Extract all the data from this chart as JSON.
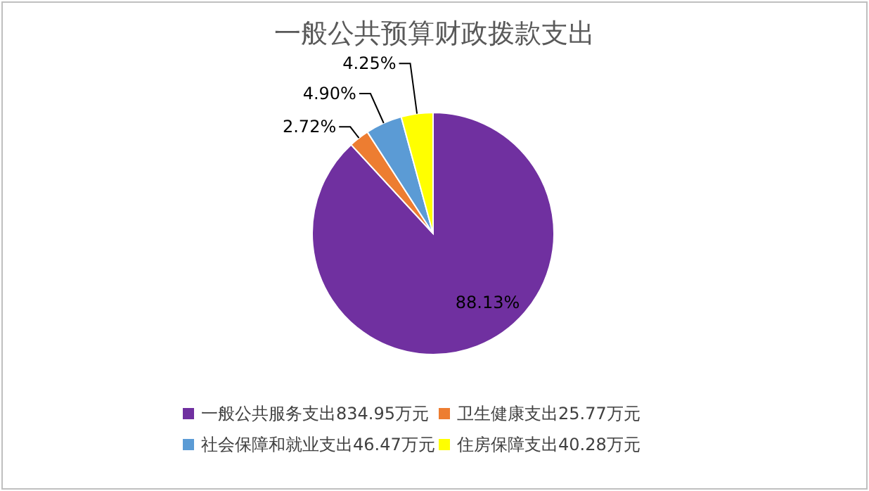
{
  "chart_data": {
    "type": "pie",
    "title": "一般公共预算财政拨款支出",
    "categories": [
      "一般公共服务支出834.95万元",
      "卫生健康支出25.77万元",
      "社会保障和就业支出46.47万元",
      "住房保障支出40.28万元"
    ],
    "values": [
      88.13,
      2.72,
      4.9,
      4.25
    ],
    "value_labels": [
      "88.13%",
      "2.72%",
      "4.90%",
      "4.25%"
    ],
    "colors": [
      "#7030a0",
      "#ed7d31",
      "#5b9bd5",
      "#ffff00"
    ],
    "legend": "bottom"
  }
}
